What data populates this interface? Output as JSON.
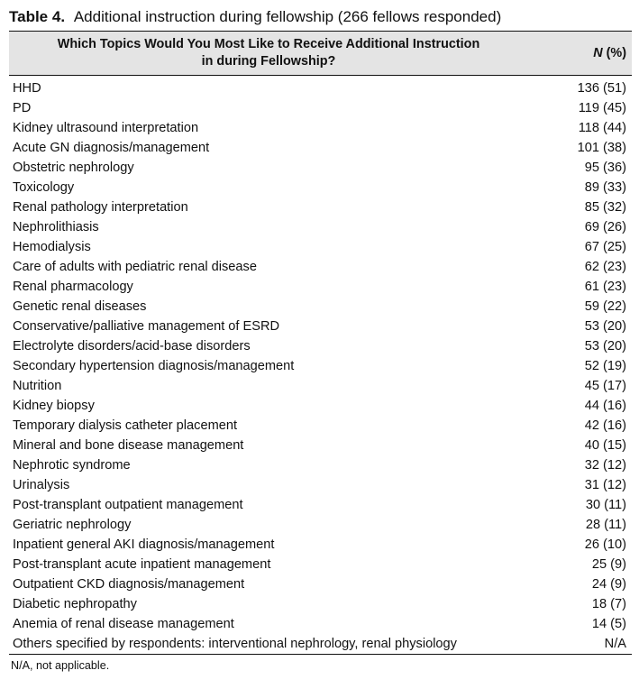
{
  "table": {
    "label": "Table 4.",
    "title": "Additional instruction during fellowship (266 fellows responded)",
    "header_topic_line1": "Which Topics Would You Most Like to Receive Additional Instruction",
    "header_topic_line2": "in during Fellowship?",
    "header_n": "N",
    "header_pct": "(%)",
    "rows": [
      {
        "topic": "HHD",
        "value": "136 (51)"
      },
      {
        "topic": "PD",
        "value": "119 (45)"
      },
      {
        "topic": "Kidney ultrasound interpretation",
        "value": "118 (44)"
      },
      {
        "topic": "Acute GN diagnosis/management",
        "value": "101 (38)"
      },
      {
        "topic": "Obstetric nephrology",
        "value": "95 (36)"
      },
      {
        "topic": "Toxicology",
        "value": "89 (33)"
      },
      {
        "topic": "Renal pathology interpretation",
        "value": "85 (32)"
      },
      {
        "topic": "Nephrolithiasis",
        "value": "69 (26)"
      },
      {
        "topic": "Hemodialysis",
        "value": "67 (25)"
      },
      {
        "topic": "Care of adults with pediatric renal disease",
        "value": "62 (23)"
      },
      {
        "topic": "Renal pharmacology",
        "value": "61 (23)"
      },
      {
        "topic": "Genetic renal diseases",
        "value": "59 (22)"
      },
      {
        "topic": "Conservative/palliative management of ESRD",
        "value": "53 (20)"
      },
      {
        "topic": "Electrolyte disorders/acid-base disorders",
        "value": "53 (20)"
      },
      {
        "topic": "Secondary hypertension diagnosis/management",
        "value": "52 (19)"
      },
      {
        "topic": "Nutrition",
        "value": "45 (17)"
      },
      {
        "topic": "Kidney biopsy",
        "value": "44 (16)"
      },
      {
        "topic": "Temporary dialysis catheter placement",
        "value": "42 (16)"
      },
      {
        "topic": "Mineral and bone disease management",
        "value": "40 (15)"
      },
      {
        "topic": "Nephrotic syndrome",
        "value": "32 (12)"
      },
      {
        "topic": "Urinalysis",
        "value": "31 (12)"
      },
      {
        "topic": "Post-transplant outpatient management",
        "value": "30 (11)"
      },
      {
        "topic": "Geriatric nephrology",
        "value": "28 (11)"
      },
      {
        "topic": "Inpatient general AKI diagnosis/management",
        "value": "26 (10)"
      },
      {
        "topic": "Post-transplant acute inpatient management",
        "value": "25 (9)"
      },
      {
        "topic": "Outpatient CKD diagnosis/management",
        "value": "24 (9)"
      },
      {
        "topic": "Diabetic nephropathy",
        "value": "18 (7)"
      },
      {
        "topic": "Anemia of renal disease management",
        "value": "14 (5)"
      },
      {
        "topic": "Others specified by respondents: interventional nephrology, renal physiology",
        "value": "N/A"
      }
    ],
    "footnote": "N/A, not applicable."
  }
}
